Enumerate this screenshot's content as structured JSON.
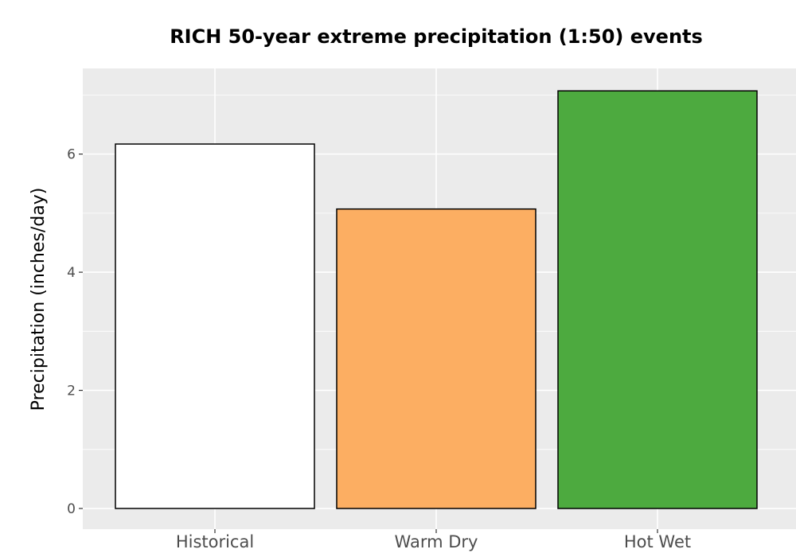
{
  "chart_data": {
    "type": "bar",
    "title": "RICH 50-year extreme precipitation (1:50) events",
    "xlabel": "",
    "ylabel": "Precipitation (inches/day)",
    "categories": [
      "Historical",
      "Warm Dry",
      "Hot Wet"
    ],
    "values": [
      6.17,
      5.07,
      7.07
    ],
    "colors": [
      "#ffffff",
      "#fcae62",
      "#4daa3f"
    ],
    "bar_outline": "#000000",
    "panel_background": "#ebebeb",
    "grid": true,
    "ylim": [
      -0.35,
      7.45
    ],
    "yticks": [
      0,
      2,
      4,
      6
    ],
    "ytick_labels": [
      "0",
      "2",
      "4",
      "6"
    ],
    "legend": "none"
  }
}
